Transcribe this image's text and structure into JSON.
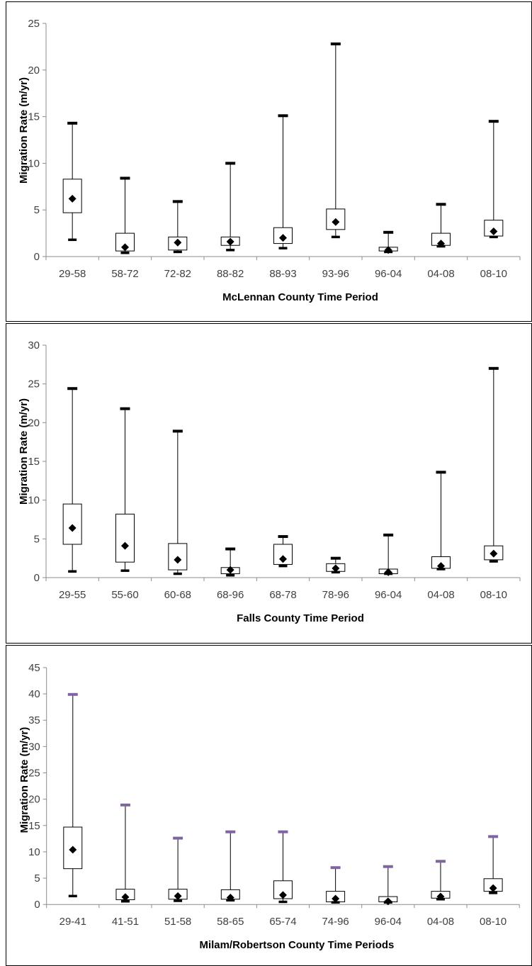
{
  "chart_data": [
    {
      "type": "box",
      "ylabel": "Migration Rate (m/yr)",
      "xlabel": "McLennan County Time Period",
      "ylim": [
        0,
        25
      ],
      "yticks": [
        0,
        5,
        10,
        15,
        20,
        25
      ],
      "cap_color": "#000000",
      "categories": [
        "29-58",
        "58-72",
        "72-82",
        "88-82",
        "88-93",
        "93-96",
        "96-04",
        "04-08",
        "08-10"
      ],
      "min": [
        1.8,
        0.4,
        0.5,
        0.7,
        0.9,
        2.1,
        0.5,
        1.1,
        2.1
      ],
      "q1": [
        4.7,
        0.6,
        0.7,
        1.2,
        1.4,
        2.9,
        0.6,
        1.2,
        2.2
      ],
      "q3": [
        8.3,
        2.5,
        2.1,
        2.1,
        3.1,
        5.1,
        1.0,
        2.5,
        3.9
      ],
      "max": [
        14.3,
        8.4,
        5.9,
        10.0,
        15.1,
        22.8,
        2.6,
        5.6,
        14.5
      ],
      "mean": [
        6.2,
        1.0,
        1.5,
        1.6,
        2.0,
        3.7,
        0.7,
        1.4,
        2.7
      ]
    },
    {
      "type": "box",
      "ylabel": "Migration Rate (m/yr)",
      "xlabel": "Falls County Time Period",
      "ylim": [
        0,
        30
      ],
      "yticks": [
        0,
        5,
        10,
        15,
        20,
        25,
        30
      ],
      "cap_color": "#000000",
      "categories": [
        "29-55",
        "55-60",
        "60-68",
        "68-96",
        "68-78",
        "78-96",
        "96-04",
        "04-08",
        "08-10"
      ],
      "min": [
        0.8,
        0.9,
        0.5,
        0.3,
        1.5,
        0.7,
        0.5,
        1.1,
        2.1
      ],
      "q1": [
        4.3,
        2.0,
        1.0,
        0.5,
        1.7,
        0.8,
        0.5,
        1.2,
        2.3
      ],
      "q3": [
        9.5,
        8.2,
        4.4,
        1.3,
        4.3,
        1.8,
        1.1,
        2.7,
        4.1
      ],
      "max": [
        24.4,
        21.8,
        18.9,
        3.7,
        5.3,
        2.5,
        5.5,
        13.6,
        27.0
      ],
      "mean": [
        6.4,
        4.1,
        2.3,
        1.0,
        2.4,
        1.2,
        0.7,
        1.5,
        3.1
      ]
    },
    {
      "type": "box",
      "ylabel": "Migration Rate (m/yr)",
      "xlabel": "Milam/Robertson County Time Periods",
      "ylim": [
        0,
        45
      ],
      "yticks": [
        0,
        5,
        10,
        15,
        20,
        25,
        30,
        35,
        40,
        45
      ],
      "cap_color": "#8064a2",
      "categories": [
        "29-41",
        "41-51",
        "51-58",
        "58-65",
        "65-74",
        "74-96",
        "96-04",
        "04-08",
        "08-10"
      ],
      "min": [
        1.6,
        0.6,
        0.7,
        0.8,
        0.5,
        0.4,
        0.4,
        1.0,
        2.2
      ],
      "q1": [
        6.8,
        0.9,
        1.0,
        1.0,
        1.1,
        0.5,
        0.5,
        1.2,
        2.5
      ],
      "q3": [
        14.7,
        2.9,
        2.9,
        2.8,
        4.5,
        2.5,
        1.5,
        2.5,
        4.9
      ],
      "max": [
        39.9,
        18.9,
        12.6,
        13.8,
        13.8,
        7.0,
        7.2,
        8.2,
        12.9
      ],
      "mean": [
        10.4,
        1.4,
        1.6,
        1.3,
        1.8,
        1.1,
        0.6,
        1.5,
        3.1
      ]
    }
  ]
}
